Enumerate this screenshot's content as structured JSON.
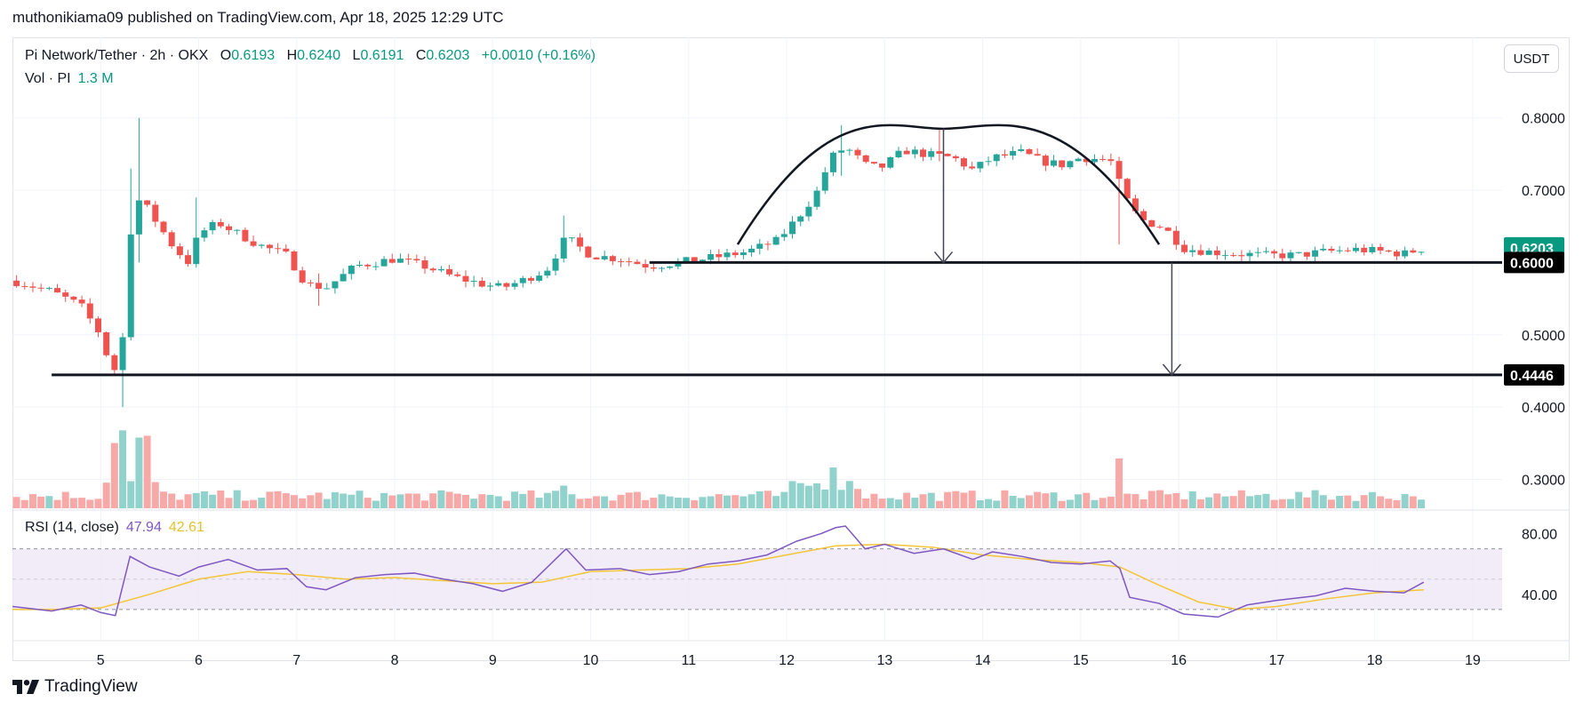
{
  "header": {
    "published": "muthonikiama09 published on TradingView.com, Apr 18, 2025 12:29 UTC"
  },
  "legend": {
    "symbol": "Pi Network/Tether · 2h · OKX",
    "o_label": "O",
    "o_value": "0.6193",
    "h_label": "H",
    "h_value": "0.6240",
    "l_label": "L",
    "l_value": "0.6191",
    "c_label": "C",
    "c_value": "0.6203",
    "change": "+0.0010 (+0.16%)",
    "vol_label": "Vol · PI",
    "vol_value": "1.3 M"
  },
  "rsi_legend": {
    "label": "RSI (14, close)",
    "rsi_value": "47.94",
    "ma_value": "42.61"
  },
  "toolbar": {
    "currency": "USDT"
  },
  "brand": {
    "name": "TradingView"
  },
  "colors": {
    "up": "#26a69a",
    "down": "#ef5350",
    "vol_up": "#92d2cc",
    "vol_down": "#f7a9a7",
    "rsi": "#7e57c2",
    "rsi_ma": "#f5c533",
    "rsi_band": "#ede7f6",
    "drawing": "#131722",
    "last_price_bg": "#089981"
  },
  "chart_data": {
    "type": "candlestick",
    "price_axis": {
      "ticks": [
        "0.8000",
        "0.7000",
        "0.5000",
        "0.4000",
        "0.3000"
      ],
      "tick_values": [
        0.8,
        0.7,
        0.5,
        0.4,
        0.3
      ],
      "range": [
        0.26,
        0.855
      ]
    },
    "time_axis": {
      "ticks": [
        "5",
        "6",
        "7",
        "8",
        "9",
        "10",
        "11",
        "12",
        "13",
        "14",
        "15",
        "16",
        "17",
        "18",
        "19"
      ],
      "tick_days": [
        5,
        6,
        7,
        8,
        9,
        10,
        11,
        12,
        13,
        14,
        15,
        16,
        17,
        18,
        19
      ],
      "range_days": [
        4.1,
        19.3
      ]
    },
    "price_labels": [
      {
        "text": "0.6203",
        "value": 0.6203,
        "style": "last"
      },
      {
        "text": "0.6000",
        "value": 0.6,
        "style": "line"
      },
      {
        "text": "0.4446",
        "value": 0.4446,
        "style": "line"
      }
    ],
    "keypoints": [
      [
        4.1,
        0.575
      ],
      [
        4.5,
        0.56
      ],
      [
        4.8,
        0.54
      ],
      [
        5.0,
        0.5
      ],
      [
        5.1,
        0.455
      ],
      [
        5.2,
        0.448
      ],
      [
        5.3,
        0.64
      ],
      [
        5.4,
        0.69
      ],
      [
        5.55,
        0.66
      ],
      [
        5.75,
        0.62
      ],
      [
        5.9,
        0.6
      ],
      [
        6.0,
        0.64
      ],
      [
        6.2,
        0.655
      ],
      [
        6.4,
        0.64
      ],
      [
        6.6,
        0.625
      ],
      [
        6.9,
        0.61
      ],
      [
        7.1,
        0.57
      ],
      [
        7.3,
        0.565
      ],
      [
        7.6,
        0.595
      ],
      [
        7.8,
        0.6
      ],
      [
        8.0,
        0.605
      ],
      [
        8.3,
        0.595
      ],
      [
        8.6,
        0.58
      ],
      [
        8.9,
        0.57
      ],
      [
        9.1,
        0.565
      ],
      [
        9.3,
        0.575
      ],
      [
        9.55,
        0.59
      ],
      [
        9.75,
        0.635
      ],
      [
        10.0,
        0.61
      ],
      [
        10.3,
        0.605
      ],
      [
        10.6,
        0.595
      ],
      [
        10.9,
        0.6
      ],
      [
        11.3,
        0.608
      ],
      [
        11.6,
        0.615
      ],
      [
        11.9,
        0.63
      ],
      [
        12.1,
        0.66
      ],
      [
        12.3,
        0.695
      ],
      [
        12.45,
        0.745
      ],
      [
        12.6,
        0.76
      ],
      [
        12.8,
        0.735
      ],
      [
        12.95,
        0.73
      ],
      [
        13.2,
        0.755
      ],
      [
        13.5,
        0.748
      ],
      [
        13.7,
        0.745
      ],
      [
        13.9,
        0.728
      ],
      [
        14.1,
        0.745
      ],
      [
        14.4,
        0.752
      ],
      [
        14.6,
        0.74
      ],
      [
        14.8,
        0.735
      ],
      [
        15.0,
        0.745
      ],
      [
        15.3,
        0.742
      ],
      [
        15.45,
        0.69
      ],
      [
        15.6,
        0.66
      ],
      [
        15.85,
        0.648
      ],
      [
        16.05,
        0.62
      ],
      [
        16.3,
        0.615
      ],
      [
        16.6,
        0.612
      ],
      [
        16.9,
        0.61
      ],
      [
        17.2,
        0.61
      ],
      [
        17.5,
        0.615
      ],
      [
        17.8,
        0.618
      ],
      [
        18.1,
        0.615
      ],
      [
        18.3,
        0.612
      ],
      [
        18.5,
        0.62
      ]
    ],
    "spikes": [
      {
        "day": 5.35,
        "high": 0.8,
        "low": 0.6
      },
      {
        "day": 5.2,
        "high": 0.5,
        "low": 0.4
      },
      {
        "day": 5.3,
        "high": 0.73,
        "low": 0.62
      },
      {
        "day": 12.55,
        "high": 0.79,
        "low": 0.72
      },
      {
        "day": 15.4,
        "high": 0.74,
        "low": 0.625
      },
      {
        "day": 9.7,
        "high": 0.665,
        "low": 0.6
      },
      {
        "day": 6.0,
        "high": 0.69,
        "low": 0.62
      },
      {
        "day": 7.2,
        "high": 0.585,
        "low": 0.54
      },
      {
        "day": 13.55,
        "high": 0.785,
        "low": 0.74
      }
    ],
    "volume_spikes": [
      {
        "day": 5.15,
        "level": 0.72
      },
      {
        "day": 5.25,
        "level": 0.86
      },
      {
        "day": 5.35,
        "level": 0.78
      },
      {
        "day": 5.45,
        "level": 0.8
      },
      {
        "day": 12.45,
        "level": 0.45
      },
      {
        "day": 15.4,
        "level": 0.55
      },
      {
        "day": 12.1,
        "level": 0.3
      },
      {
        "day": 9.7,
        "level": 0.25
      }
    ],
    "rsi": {
      "range": [
        10,
        95
      ],
      "ticks": [
        "80.00",
        "40.00"
      ],
      "tick_values": [
        80,
        40
      ],
      "band": [
        30,
        70
      ],
      "mid": 50,
      "rsi_points": [
        [
          4.1,
          32
        ],
        [
          4.5,
          29
        ],
        [
          4.8,
          33
        ],
        [
          5.0,
          28
        ],
        [
          5.15,
          26
        ],
        [
          5.3,
          65
        ],
        [
          5.5,
          58
        ],
        [
          5.8,
          52
        ],
        [
          6.0,
          58
        ],
        [
          6.3,
          63
        ],
        [
          6.6,
          56
        ],
        [
          6.9,
          57
        ],
        [
          7.1,
          45
        ],
        [
          7.3,
          43
        ],
        [
          7.6,
          51
        ],
        [
          7.9,
          53
        ],
        [
          8.2,
          54
        ],
        [
          8.5,
          50
        ],
        [
          8.8,
          47
        ],
        [
          9.1,
          42
        ],
        [
          9.4,
          48
        ],
        [
          9.75,
          70
        ],
        [
          9.95,
          56
        ],
        [
          10.3,
          57
        ],
        [
          10.6,
          53
        ],
        [
          10.9,
          55
        ],
        [
          11.2,
          60
        ],
        [
          11.5,
          62
        ],
        [
          11.8,
          66
        ],
        [
          12.1,
          75
        ],
        [
          12.35,
          80
        ],
        [
          12.5,
          84
        ],
        [
          12.6,
          85
        ],
        [
          12.8,
          70
        ],
        [
          13.0,
          73
        ],
        [
          13.3,
          67
        ],
        [
          13.6,
          70
        ],
        [
          13.9,
          63
        ],
        [
          14.1,
          68
        ],
        [
          14.4,
          65
        ],
        [
          14.7,
          61
        ],
        [
          15.0,
          60
        ],
        [
          15.3,
          62
        ],
        [
          15.4,
          57
        ],
        [
          15.5,
          38
        ],
        [
          15.8,
          34
        ],
        [
          16.05,
          27
        ],
        [
          16.4,
          25
        ],
        [
          16.7,
          33
        ],
        [
          17.0,
          36
        ],
        [
          17.4,
          39
        ],
        [
          17.7,
          44
        ],
        [
          18.0,
          42
        ],
        [
          18.3,
          41
        ],
        [
          18.5,
          48
        ]
      ],
      "ma_points": [
        [
          4.1,
          30
        ],
        [
          4.5,
          30
        ],
        [
          5.0,
          31
        ],
        [
          5.5,
          40
        ],
        [
          6.0,
          50
        ],
        [
          6.5,
          55
        ],
        [
          7.0,
          53
        ],
        [
          7.5,
          50
        ],
        [
          8.0,
          51
        ],
        [
          8.5,
          49
        ],
        [
          9.0,
          47
        ],
        [
          9.5,
          48
        ],
        [
          10.0,
          55
        ],
        [
          10.5,
          56
        ],
        [
          11.0,
          57
        ],
        [
          11.5,
          60
        ],
        [
          12.0,
          66
        ],
        [
          12.5,
          72
        ],
        [
          13.0,
          73
        ],
        [
          13.5,
          71
        ],
        [
          14.0,
          66
        ],
        [
          14.5,
          63
        ],
        [
          15.0,
          61
        ],
        [
          15.4,
          58
        ],
        [
          15.8,
          46
        ],
        [
          16.2,
          35
        ],
        [
          16.6,
          30
        ],
        [
          17.0,
          32
        ],
        [
          17.5,
          37
        ],
        [
          18.0,
          41
        ],
        [
          18.5,
          43
        ]
      ]
    },
    "drawings": {
      "support_level": 0.6,
      "target_level": 0.4446,
      "support_start_day": 10.6,
      "target_start_day": 4.5,
      "arc": {
        "start_day": 11.5,
        "start_price": 0.625,
        "peak_day": 13.6,
        "peak_price": 0.785,
        "end_day": 15.8,
        "end_price": 0.625
      },
      "arrow1": {
        "day": 13.6,
        "from": 0.785,
        "to": 0.6
      },
      "arrow2": {
        "day": 15.93,
        "from": 0.6,
        "to": 0.4446
      }
    }
  }
}
